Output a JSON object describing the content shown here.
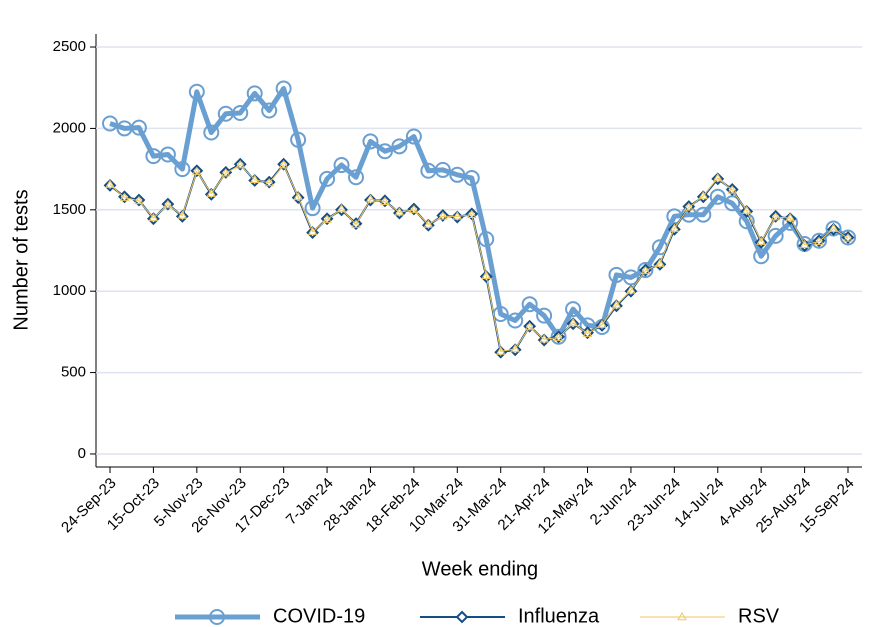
{
  "chart_data": {
    "type": "line",
    "x_label": "Week ending",
    "y_label": "Number of tests",
    "categories": [
      "24-Sep-23",
      null,
      null,
      "15-Oct-23",
      null,
      null,
      "5-Nov-23",
      null,
      null,
      "26-Nov-23",
      null,
      null,
      "17-Dec-23",
      null,
      null,
      "7-Jan-24",
      null,
      null,
      "28-Jan-24",
      null,
      null,
      "18-Feb-24",
      null,
      null,
      "10-Mar-24",
      null,
      null,
      "31-Mar-24",
      null,
      null,
      "21-Apr-24",
      null,
      null,
      "12-May-24",
      null,
      null,
      "2-Jun-24",
      null,
      null,
      "23-Jun-24",
      null,
      null,
      "14-Jul-24",
      null,
      null,
      "4-Aug-24",
      null,
      null,
      "25-Aug-24",
      null,
      null,
      "15-Sep-24"
    ],
    "ylim": [
      -80,
      2580
    ],
    "yticks": [
      0,
      500,
      1000,
      1500,
      2000,
      2500
    ],
    "grid": true,
    "legend": "bottom",
    "series": [
      {
        "name": "COVID-19",
        "color": "#6a9fd2",
        "marker": "circle",
        "values": [
          2030,
          2000,
          2005,
          1830,
          1840,
          1750,
          2225,
          1975,
          2090,
          2095,
          2215,
          2110,
          2245,
          1930,
          1510,
          1690,
          1775,
          1700,
          1920,
          1860,
          1890,
          1950,
          1740,
          1745,
          1715,
          1695,
          1320,
          860,
          820,
          920,
          850,
          720,
          890,
          790,
          780,
          1100,
          1085,
          1130,
          1270,
          1460,
          1470,
          1470,
          1580,
          1540,
          1430,
          1215,
          1340,
          1420,
          1290,
          1310,
          1385,
          1330
        ]
      },
      {
        "name": "Influenza",
        "color": "#154d85",
        "marker": "diamond",
        "values": [
          1650,
          1580,
          1560,
          1445,
          1535,
          1460,
          1740,
          1595,
          1730,
          1780,
          1680,
          1670,
          1780,
          1575,
          1360,
          1445,
          1500,
          1415,
          1560,
          1555,
          1480,
          1505,
          1405,
          1465,
          1455,
          1475,
          1090,
          625,
          640,
          785,
          700,
          720,
          800,
          745,
          790,
          910,
          1000,
          1130,
          1165,
          1380,
          1520,
          1580,
          1690,
          1625,
          1490,
          1300,
          1460,
          1445,
          1280,
          1310,
          1380,
          1330
        ]
      },
      {
        "name": "RSV",
        "color": "#f0c75e",
        "marker": "triangle",
        "values": [
          1655,
          1575,
          1555,
          1450,
          1530,
          1465,
          1735,
          1600,
          1725,
          1775,
          1685,
          1665,
          1775,
          1580,
          1365,
          1440,
          1505,
          1410,
          1565,
          1550,
          1485,
          1500,
          1410,
          1460,
          1460,
          1470,
          1095,
          630,
          645,
          780,
          705,
          715,
          805,
          740,
          795,
          915,
          1005,
          1125,
          1170,
          1385,
          1515,
          1585,
          1695,
          1620,
          1495,
          1305,
          1455,
          1450,
          1285,
          1305,
          1385,
          1325
        ]
      }
    ]
  }
}
